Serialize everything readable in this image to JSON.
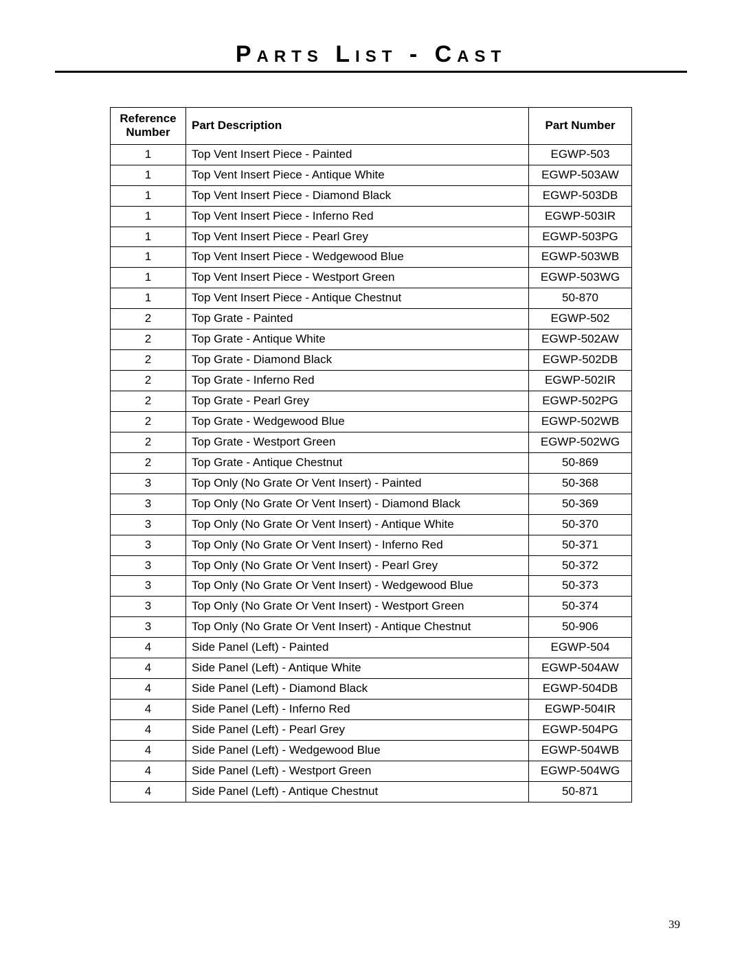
{
  "title": "Parts List - Cast",
  "page_number": "39",
  "table": {
    "headers": {
      "ref_line1": "Reference",
      "ref_line2": "Number",
      "desc": "Part Description",
      "num": "Part Number"
    },
    "rows": [
      {
        "ref": "1",
        "desc": "Top Vent Insert Piece - Painted",
        "num": "EGWP-503"
      },
      {
        "ref": "1",
        "desc": "Top Vent Insert Piece - Antique White",
        "num": "EGWP-503AW"
      },
      {
        "ref": "1",
        "desc": "Top Vent Insert Piece - Diamond Black",
        "num": "EGWP-503DB"
      },
      {
        "ref": "1",
        "desc": "Top Vent Insert Piece - Inferno Red",
        "num": "EGWP-503IR"
      },
      {
        "ref": "1",
        "desc": "Top Vent Insert Piece - Pearl Grey",
        "num": "EGWP-503PG"
      },
      {
        "ref": "1",
        "desc": "Top Vent Insert Piece - Wedgewood Blue",
        "num": "EGWP-503WB"
      },
      {
        "ref": "1",
        "desc": "Top Vent Insert Piece - Westport Green",
        "num": "EGWP-503WG"
      },
      {
        "ref": "1",
        "desc": "Top Vent Insert Piece - Antique Chestnut",
        "num": "50-870"
      },
      {
        "ref": "2",
        "desc": "Top Grate - Painted",
        "num": "EGWP-502"
      },
      {
        "ref": "2",
        "desc": "Top Grate - Antique White",
        "num": "EGWP-502AW"
      },
      {
        "ref": "2",
        "desc": "Top Grate - Diamond Black",
        "num": "EGWP-502DB"
      },
      {
        "ref": "2",
        "desc": "Top Grate - Inferno Red",
        "num": "EGWP-502IR"
      },
      {
        "ref": "2",
        "desc": "Top Grate - Pearl Grey",
        "num": "EGWP-502PG"
      },
      {
        "ref": "2",
        "desc": "Top Grate - Wedgewood Blue",
        "num": "EGWP-502WB"
      },
      {
        "ref": "2",
        "desc": "Top Grate - Westport Green",
        "num": "EGWP-502WG"
      },
      {
        "ref": "2",
        "desc": "Top Grate - Antique Chestnut",
        "num": "50-869"
      },
      {
        "ref": "3",
        "desc": "Top Only (No Grate Or Vent Insert) - Painted",
        "num": "50-368"
      },
      {
        "ref": "3",
        "desc": "Top Only (No Grate Or Vent Insert) - Diamond Black",
        "num": "50-369"
      },
      {
        "ref": "3",
        "desc": "Top Only (No Grate Or Vent Insert) - Antique White",
        "num": "50-370"
      },
      {
        "ref": "3",
        "desc": "Top Only (No Grate Or Vent Insert) - Inferno Red",
        "num": "50-371"
      },
      {
        "ref": "3",
        "desc": "Top Only (No Grate Or Vent Insert) - Pearl Grey",
        "num": "50-372"
      },
      {
        "ref": "3",
        "desc": "Top Only (No Grate Or Vent Insert) - Wedgewood Blue",
        "num": "50-373"
      },
      {
        "ref": "3",
        "desc": "Top Only (No Grate Or Vent Insert) - Westport Green",
        "num": "50-374"
      },
      {
        "ref": "3",
        "desc": "Top Only (No Grate Or Vent Insert) - Antique Chestnut",
        "num": "50-906"
      },
      {
        "ref": "4",
        "desc": "Side Panel (Left) - Painted",
        "num": "EGWP-504"
      },
      {
        "ref": "4",
        "desc": "Side Panel (Left) - Antique White",
        "num": "EGWP-504AW"
      },
      {
        "ref": "4",
        "desc": "Side Panel (Left) - Diamond Black",
        "num": "EGWP-504DB"
      },
      {
        "ref": "4",
        "desc": "Side Panel (Left) - Inferno Red",
        "num": "EGWP-504IR"
      },
      {
        "ref": "4",
        "desc": "Side Panel (Left) - Pearl Grey",
        "num": "EGWP-504PG"
      },
      {
        "ref": "4",
        "desc": "Side Panel (Left) - Wedgewood Blue",
        "num": "EGWP-504WB"
      },
      {
        "ref": "4",
        "desc": "Side Panel (Left) - Westport Green",
        "num": "EGWP-504WG"
      },
      {
        "ref": "4",
        "desc": "Side Panel (Left) - Antique Chestnut",
        "num": "50-871"
      }
    ]
  }
}
